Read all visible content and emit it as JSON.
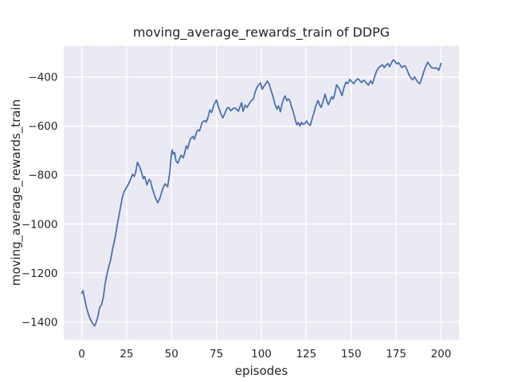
{
  "chart_data": {
    "type": "line",
    "title": "moving_average_rewards_train of DDPG",
    "xlabel": "episodes",
    "ylabel": "moving_average_rewards_train",
    "xlim": [
      -10,
      210
    ],
    "ylim": [
      -1473,
      -273
    ],
    "xticks": [
      0,
      25,
      50,
      75,
      100,
      125,
      150,
      175,
      200
    ],
    "xtick_labels": [
      "0",
      "25",
      "50",
      "75",
      "100",
      "125",
      "150",
      "175",
      "200"
    ],
    "yticks": [
      -400,
      -600,
      -800,
      -1000,
      -1200,
      -1400
    ],
    "ytick_labels": [
      "−400",
      "−600",
      "−800",
      "−1000",
      "−1200",
      "−1400"
    ],
    "grid": true,
    "legend": "none",
    "series": [
      {
        "name": "moving_average_rewards_train",
        "color": "#4c72b0",
        "x": [
          0,
          0.7,
          1.5,
          2.5,
          3.5,
          4.5,
          5.5,
          6.5,
          7.2,
          8,
          9,
          10,
          11,
          12,
          13,
          14,
          15,
          16,
          17,
          17.6,
          18.5,
          19.5,
          20.5,
          21.5,
          22.5,
          23.5,
          25,
          26.5,
          27.5,
          28.3,
          29.3,
          30,
          31,
          32,
          33,
          34.3,
          35,
          36.3,
          37.5,
          38.3,
          39.3,
          41,
          42.3,
          43.5,
          44.5,
          45.5,
          46.5,
          47.8,
          49,
          49.7,
          50.3,
          51,
          51.7,
          52.4,
          53.5,
          54.4,
          55.3,
          56.5,
          57.3,
          58.2,
          59,
          60.4,
          61.9,
          62.7,
          64.1,
          64.9,
          65.6,
          67.1,
          68.6,
          69.3,
          70.3,
          71.3,
          72.3,
          73.5,
          75,
          76,
          77.2,
          78.5,
          79.5,
          80.8,
          81.8,
          83,
          84,
          85.2,
          86.2,
          87.2,
          88.2,
          89,
          89.8,
          91,
          92,
          93,
          94,
          95.5,
          96.5,
          97.5,
          98.5,
          99.5,
          100.5,
          101.3,
          102.2,
          103.3,
          104.3,
          105.5,
          106.5,
          107.5,
          108.6,
          109.5,
          110.6,
          111.5,
          112.5,
          113.2,
          114.2,
          115,
          115.8,
          116.8,
          118,
          119,
          119.8,
          120.6,
          121.4,
          122.4,
          123.3,
          124.2,
          125.2,
          126.2,
          127.2,
          128.2,
          129.2,
          130.2,
          131.5,
          132.5,
          133.3,
          134.3,
          135.5,
          136.5,
          137.3,
          138.3,
          139.2,
          140,
          140.8,
          141.9,
          142.9,
          143.6,
          144.9,
          146,
          147.1,
          148.1,
          149.3,
          150.4,
          151.4,
          152.5,
          153.7,
          154.8,
          155.9,
          156.8,
          157.8,
          158.8,
          159.6,
          160.8,
          161.8,
          163,
          164,
          165.3,
          166.3,
          167.4,
          168.4,
          169.4,
          170.4,
          171.4,
          172.4,
          173.5,
          174.5,
          175.5,
          176.4,
          177.2,
          178.2,
          179.2,
          180.2,
          181.3,
          182.4,
          183.4,
          184.2,
          185.2,
          186.2,
          187.2,
          188.2,
          189.3,
          190.4,
          191.5,
          192.6,
          193.7,
          194.8,
          196,
          197,
          198,
          198.7,
          199.4,
          200
        ],
        "y": [
          -1282,
          -1272,
          -1300,
          -1336,
          -1362,
          -1384,
          -1398,
          -1410,
          -1416,
          -1402,
          -1378,
          -1340,
          -1330,
          -1300,
          -1245,
          -1207,
          -1175,
          -1150,
          -1110,
          -1088,
          -1060,
          -1015,
          -975,
          -935,
          -895,
          -870,
          -850,
          -830,
          -812,
          -797,
          -806,
          -790,
          -748,
          -762,
          -782,
          -815,
          -806,
          -840,
          -818,
          -824,
          -855,
          -893,
          -913,
          -895,
          -870,
          -848,
          -836,
          -848,
          -790,
          -730,
          -698,
          -715,
          -708,
          -741,
          -752,
          -735,
          -719,
          -730,
          -710,
          -681,
          -692,
          -654,
          -643,
          -654,
          -622,
          -616,
          -620,
          -584,
          -578,
          -584,
          -565,
          -535,
          -545,
          -515,
          -494,
          -520,
          -545,
          -567,
          -552,
          -528,
          -524,
          -538,
          -530,
          -526,
          -532,
          -540,
          -520,
          -505,
          -540,
          -515,
          -524,
          -512,
          -500,
          -490,
          -462,
          -443,
          -432,
          -424,
          -450,
          -440,
          -430,
          -417,
          -428,
          -458,
          -480,
          -510,
          -531,
          -518,
          -542,
          -510,
          -487,
          -477,
          -497,
          -490,
          -495,
          -522,
          -550,
          -578,
          -595,
          -586,
          -600,
          -585,
          -594,
          -590,
          -580,
          -592,
          -598,
          -572,
          -548,
          -520,
          -496,
          -515,
          -524,
          -500,
          -470,
          -500,
          -513,
          -496,
          -481,
          -490,
          -470,
          -432,
          -443,
          -452,
          -476,
          -442,
          -421,
          -427,
          -410,
          -420,
          -427,
          -415,
          -407,
          -415,
          -423,
          -413,
          -419,
          -428,
          -433,
          -416,
          -428,
          -400,
          -378,
          -362,
          -356,
          -350,
          -362,
          -352,
          -345,
          -358,
          -342,
          -330,
          -338,
          -347,
          -342,
          -350,
          -362,
          -355,
          -356,
          -375,
          -394,
          -406,
          -412,
          -399,
          -411,
          -422,
          -428,
          -405,
          -378,
          -357,
          -340,
          -352,
          -362,
          -364,
          -363,
          -366,
          -373,
          -360,
          -345
        ]
      }
    ]
  },
  "theme": {
    "figure_bg": "#ffffff",
    "axes_bg": "#eaeaf2",
    "grid_color": "#ffffff",
    "text_color": "#262626",
    "line_color": "#4c72b0"
  }
}
